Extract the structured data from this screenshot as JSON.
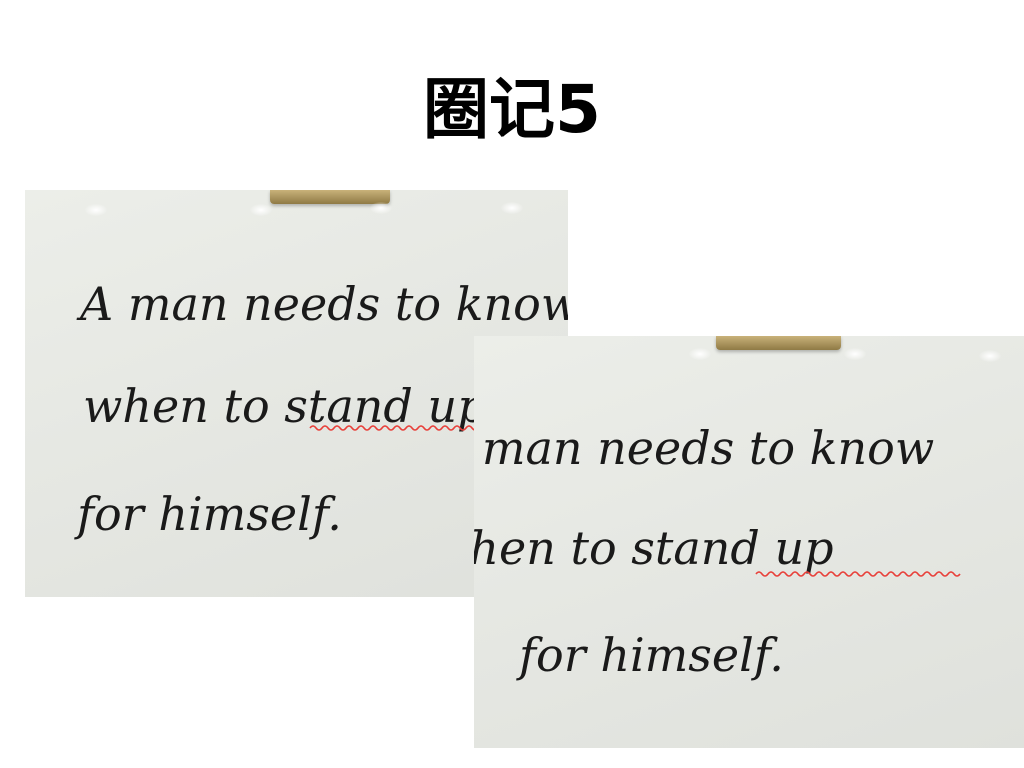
{
  "slide": {
    "title": "圈记5"
  },
  "photos": [
    {
      "lines": [
        "A man needs to know",
        "when to stand up",
        "for himself."
      ],
      "underlined": "stand up",
      "underline_color": "#e8403a"
    },
    {
      "lines": [
        "A man needs to know",
        "when to stand up",
        "for himself."
      ],
      "underlined": "stand up",
      "underline_color": "#e8403a"
    }
  ]
}
